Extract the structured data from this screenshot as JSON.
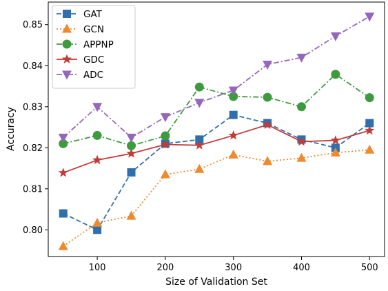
{
  "chart_data": {
    "type": "line",
    "xlabel": "Size of Validation Set",
    "ylabel": "Accuracy",
    "xlim": [
      28,
      522
    ],
    "ylim": [
      0.7935,
      0.8555
    ],
    "xticks": [
      "100",
      "200",
      "300",
      "400",
      "500"
    ],
    "yticks": [
      "0.80",
      "0.81",
      "0.82",
      "0.83",
      "0.84",
      "0.85"
    ],
    "legend_position": "top-left",
    "grid": false,
    "x": [
      50,
      100,
      150,
      200,
      250,
      300,
      350,
      400,
      450,
      500
    ],
    "series": [
      {
        "name": "GAT",
        "color": "#2f6fad",
        "linestyle": "dashed",
        "marker": "square",
        "values": [
          0.804,
          0.8,
          0.814,
          0.821,
          0.822,
          0.828,
          0.826,
          0.822,
          0.82,
          0.826
        ]
      },
      {
        "name": "GCN",
        "color": "#ee8a2d",
        "linestyle": "dotted",
        "marker": "triangle-up",
        "values": [
          0.796,
          0.8017,
          0.8034,
          0.8135,
          0.8148,
          0.8183,
          0.8167,
          0.8175,
          0.8188,
          0.8195
        ]
      },
      {
        "name": "APPNP",
        "color": "#3e9a3e",
        "linestyle": "dashdot",
        "marker": "circle",
        "values": [
          0.821,
          0.823,
          0.8205,
          0.8229,
          0.8348,
          0.8325,
          0.8323,
          0.83,
          0.8379,
          0.8322
        ]
      },
      {
        "name": "GDC",
        "color": "#c23b36",
        "linestyle": "solid",
        "marker": "star",
        "values": [
          0.8139,
          0.817,
          0.8186,
          0.8208,
          0.8206,
          0.823,
          0.8256,
          0.8215,
          0.8218,
          0.8242
        ]
      },
      {
        "name": "ADC",
        "color": "#9467bd",
        "linestyle": "dashdot",
        "marker": "triangle-down",
        "values": [
          0.8225,
          0.83,
          0.8225,
          0.8275,
          0.831,
          0.834,
          0.8403,
          0.842,
          0.8472,
          0.852
        ]
      }
    ]
  }
}
